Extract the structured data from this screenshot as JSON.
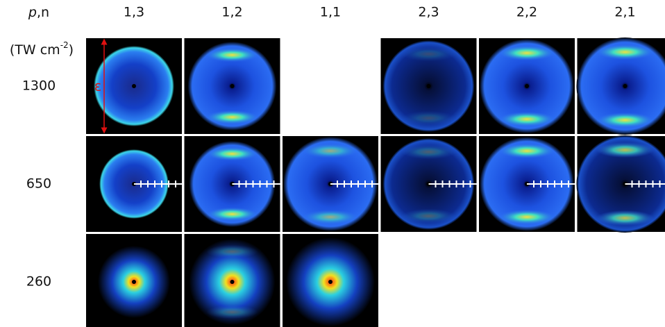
{
  "corner_label": {
    "italic": "p",
    "rest": ",n"
  },
  "columns": [
    "1,3",
    "1,2",
    "1,1",
    "2,3",
    "2,2",
    "2,1"
  ],
  "unit_label": {
    "text": "(TW cm",
    "exponent": "-2",
    "close": ")"
  },
  "rows": [
    "1300",
    "650",
    "260"
  ],
  "polarization_label": "ε"
}
